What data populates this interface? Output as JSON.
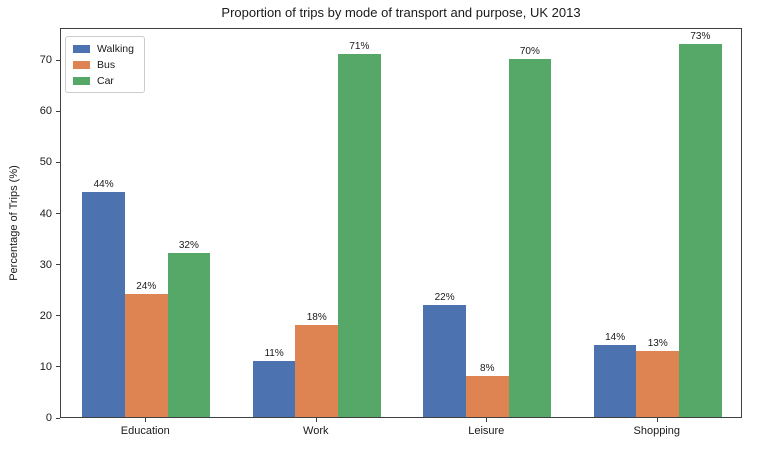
{
  "chart_data": {
    "type": "bar",
    "title": "Proportion of trips by mode of transport and purpose, UK 2013",
    "xlabel": "",
    "ylabel": "Percentage of Trips (%)",
    "categories": [
      "Education",
      "Work",
      "Leisure",
      "Shopping"
    ],
    "series": [
      {
        "name": "Walking",
        "color": "#4c72b0",
        "values": [
          44,
          11,
          22,
          14
        ],
        "labels": [
          "44%",
          "11%",
          "22%",
          "14%"
        ]
      },
      {
        "name": "Bus",
        "color": "#dd8452",
        "values": [
          24,
          18,
          8,
          13
        ],
        "labels": [
          "24%",
          "18%",
          "8%",
          "13%"
        ]
      },
      {
        "name": "Car",
        "color": "#55a868",
        "values": [
          32,
          71,
          70,
          73
        ],
        "labels": [
          "32%",
          "71%",
          "70%",
          "73%"
        ]
      }
    ],
    "yticks": [
      0,
      10,
      20,
      30,
      40,
      50,
      60,
      70
    ],
    "ylim": [
      0,
      76.3
    ],
    "grid": false,
    "bar_label_suffix": "%",
    "legend": {
      "position": "upper left",
      "entries": [
        "Walking",
        "Bus",
        "Car"
      ]
    }
  }
}
